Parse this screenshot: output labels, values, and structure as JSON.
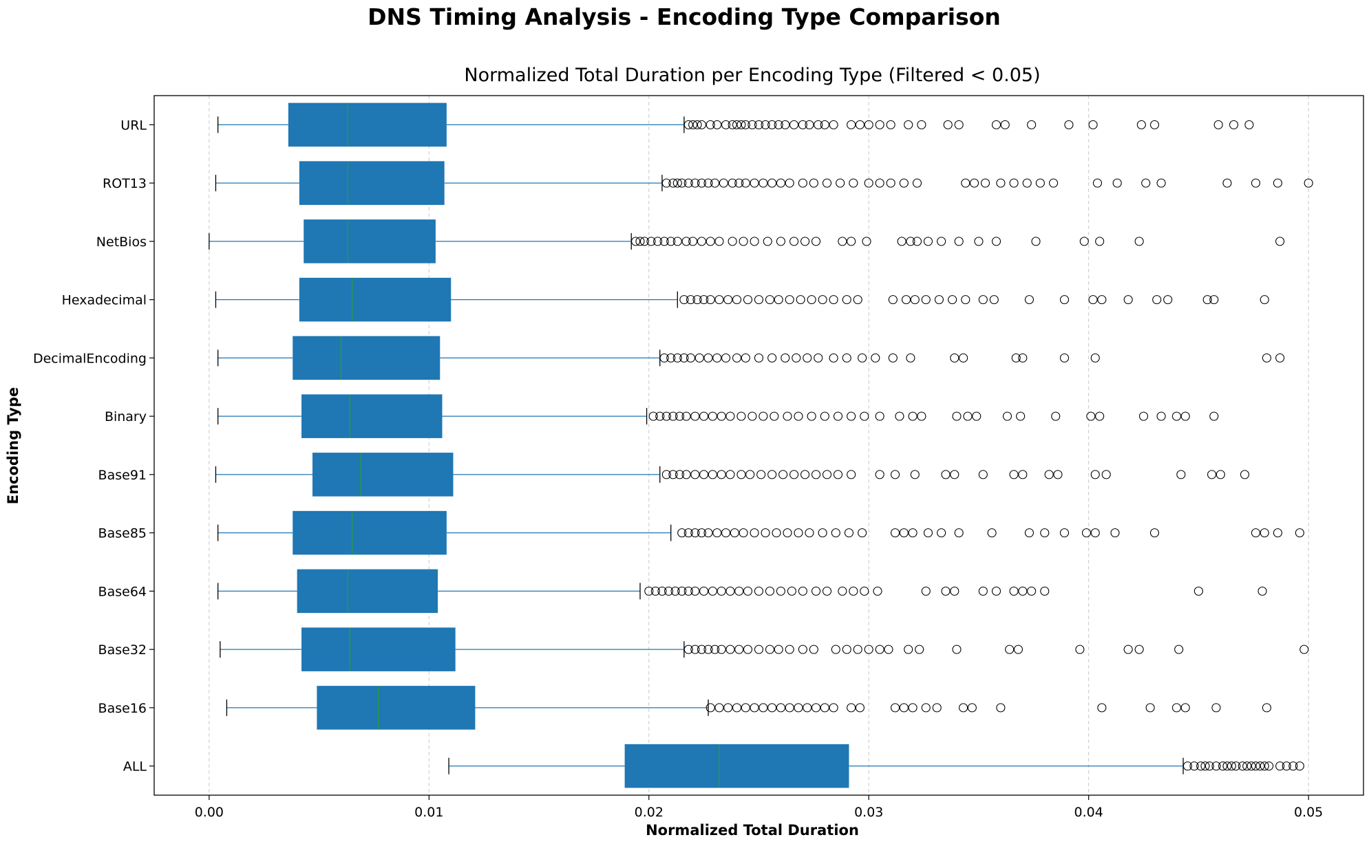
{
  "suptitle": "DNS Timing Analysis - Encoding Type Comparison",
  "chart_data": {
    "type": "boxplot",
    "orientation": "horizontal",
    "title": "Normalized Total Duration per Encoding Type (Filtered < 0.05)",
    "xlabel": "Normalized Total Duration",
    "ylabel": "Encoding Type",
    "xlim": [
      -0.0025,
      0.0525
    ],
    "xticks": [
      0.0,
      0.01,
      0.02,
      0.03,
      0.04,
      0.05
    ],
    "xtick_labels": [
      "0.00",
      "0.01",
      "0.02",
      "0.03",
      "0.04",
      "0.05"
    ],
    "grid": "x-dashed",
    "colors": {
      "box": "#1f77b4",
      "median": "#2ca02c",
      "whisker": "#1f77b4",
      "cap": "#000000",
      "flier": "#000000",
      "grid": "#c8c8c8"
    },
    "categories": [
      "URL",
      "ROT13",
      "NetBios",
      "Hexadecimal",
      "DecimalEncoding",
      "Binary",
      "Base91",
      "Base85",
      "Base64",
      "Base32",
      "Base16",
      "ALL"
    ],
    "boxes": [
      {
        "label": "URL",
        "whislo": 0.0004,
        "q1": 0.0036,
        "med": 0.0063,
        "q3": 0.0108,
        "whishi": 0.0216,
        "fliers": [
          0.0218,
          0.022,
          0.0222,
          0.0224,
          0.0228,
          0.0231,
          0.0235,
          0.0238,
          0.024,
          0.0242,
          0.0244,
          0.0247,
          0.025,
          0.0253,
          0.0256,
          0.0259,
          0.0262,
          0.0266,
          0.027,
          0.0273,
          0.0277,
          0.028,
          0.0284,
          0.0292,
          0.0296,
          0.03,
          0.0305,
          0.031,
          0.0318,
          0.0324,
          0.0336,
          0.0341,
          0.0358,
          0.0362,
          0.0374,
          0.0391,
          0.0402,
          0.0424,
          0.043,
          0.0459,
          0.0466,
          0.0473
        ]
      },
      {
        "label": "ROT13",
        "whislo": 0.0003,
        "q1": 0.0041,
        "med": 0.0063,
        "q3": 0.0107,
        "whishi": 0.0206,
        "fliers": [
          0.0208,
          0.0211,
          0.0213,
          0.0215,
          0.0218,
          0.0221,
          0.0224,
          0.0227,
          0.023,
          0.0234,
          0.0238,
          0.0241,
          0.0244,
          0.0248,
          0.0252,
          0.0256,
          0.026,
          0.0264,
          0.027,
          0.0275,
          0.0281,
          0.0287,
          0.0293,
          0.03,
          0.0305,
          0.031,
          0.0316,
          0.0322,
          0.0344,
          0.0348,
          0.0353,
          0.036,
          0.0366,
          0.0372,
          0.0378,
          0.0384,
          0.0404,
          0.0413,
          0.0426,
          0.0433,
          0.0463,
          0.0476,
          0.0486,
          0.05
        ]
      },
      {
        "label": "NetBios",
        "whislo": 0.0,
        "q1": 0.0043,
        "med": 0.0063,
        "q3": 0.0103,
        "whishi": 0.0192,
        "fliers": [
          0.0194,
          0.0196,
          0.0198,
          0.0201,
          0.0204,
          0.0207,
          0.021,
          0.0213,
          0.0217,
          0.022,
          0.0224,
          0.0228,
          0.0232,
          0.0238,
          0.0243,
          0.0248,
          0.0254,
          0.026,
          0.0266,
          0.0271,
          0.0276,
          0.0288,
          0.0292,
          0.0299,
          0.0315,
          0.0319,
          0.0322,
          0.0327,
          0.0333,
          0.0341,
          0.035,
          0.0358,
          0.0376,
          0.0398,
          0.0405,
          0.0423,
          0.0487
        ]
      },
      {
        "label": "Hexadecimal",
        "whislo": 0.0003,
        "q1": 0.0041,
        "med": 0.0065,
        "q3": 0.011,
        "whishi": 0.0213,
        "fliers": [
          0.0216,
          0.0219,
          0.0222,
          0.0225,
          0.0228,
          0.0232,
          0.0236,
          0.024,
          0.0245,
          0.025,
          0.0255,
          0.0259,
          0.0264,
          0.0269,
          0.0274,
          0.0279,
          0.0284,
          0.029,
          0.0295,
          0.0311,
          0.0317,
          0.0321,
          0.0326,
          0.0332,
          0.0338,
          0.0344,
          0.0352,
          0.0357,
          0.0373,
          0.0389,
          0.0402,
          0.0406,
          0.0418,
          0.0431,
          0.0436,
          0.0454,
          0.0457,
          0.048
        ]
      },
      {
        "label": "DecimalEncoding",
        "whislo": 0.0004,
        "q1": 0.0038,
        "med": 0.006,
        "q3": 0.0105,
        "whishi": 0.0205,
        "fliers": [
          0.0207,
          0.021,
          0.0213,
          0.0216,
          0.0219,
          0.0223,
          0.0227,
          0.0231,
          0.0235,
          0.024,
          0.0244,
          0.025,
          0.0256,
          0.0262,
          0.0267,
          0.0272,
          0.0277,
          0.0284,
          0.029,
          0.0297,
          0.0303,
          0.0311,
          0.0319,
          0.0339,
          0.0343,
          0.0367,
          0.037,
          0.0389,
          0.0403,
          0.0481,
          0.0487
        ]
      },
      {
        "label": "Binary",
        "whislo": 0.0004,
        "q1": 0.0042,
        "med": 0.0064,
        "q3": 0.0106,
        "whishi": 0.0199,
        "fliers": [
          0.0202,
          0.0205,
          0.0208,
          0.0211,
          0.0214,
          0.0217,
          0.0221,
          0.0225,
          0.0229,
          0.0233,
          0.0237,
          0.0242,
          0.0247,
          0.0252,
          0.0257,
          0.0263,
          0.0268,
          0.0274,
          0.028,
          0.0286,
          0.0292,
          0.0298,
          0.0305,
          0.0314,
          0.032,
          0.0324,
          0.034,
          0.0345,
          0.0349,
          0.0363,
          0.0369,
          0.0385,
          0.0401,
          0.0405,
          0.0425,
          0.0433,
          0.044,
          0.0444,
          0.0457
        ]
      },
      {
        "label": "Base91",
        "whislo": 0.0003,
        "q1": 0.0047,
        "med": 0.0069,
        "q3": 0.0111,
        "whishi": 0.0205,
        "fliers": [
          0.0208,
          0.0211,
          0.0214,
          0.0217,
          0.0221,
          0.0225,
          0.0229,
          0.0233,
          0.0237,
          0.0242,
          0.0246,
          0.0251,
          0.0256,
          0.0261,
          0.0266,
          0.0271,
          0.0276,
          0.0281,
          0.0286,
          0.0292,
          0.0305,
          0.0312,
          0.0321,
          0.0335,
          0.0339,
          0.0352,
          0.0366,
          0.037,
          0.0382,
          0.0386,
          0.0403,
          0.0408,
          0.0442,
          0.0456,
          0.046,
          0.0471
        ]
      },
      {
        "label": "Base85",
        "whislo": 0.0004,
        "q1": 0.0038,
        "med": 0.0065,
        "q3": 0.0108,
        "whishi": 0.021,
        "fliers": [
          0.0215,
          0.0218,
          0.0221,
          0.0224,
          0.0227,
          0.0231,
          0.0235,
          0.0239,
          0.0243,
          0.0248,
          0.0253,
          0.0258,
          0.0263,
          0.0268,
          0.0273,
          0.0279,
          0.0285,
          0.0291,
          0.0297,
          0.0312,
          0.0316,
          0.032,
          0.0327,
          0.0333,
          0.0341,
          0.0356,
          0.0373,
          0.038,
          0.0389,
          0.0399,
          0.0403,
          0.0412,
          0.043,
          0.0476,
          0.048,
          0.0486,
          0.0496
        ]
      },
      {
        "label": "Base64",
        "whislo": 0.0004,
        "q1": 0.004,
        "med": 0.0063,
        "q3": 0.0104,
        "whishi": 0.0196,
        "fliers": [
          0.02,
          0.0203,
          0.0206,
          0.0209,
          0.0212,
          0.0215,
          0.0218,
          0.0221,
          0.0225,
          0.0229,
          0.0233,
          0.0237,
          0.0241,
          0.0245,
          0.025,
          0.0255,
          0.026,
          0.0265,
          0.027,
          0.0276,
          0.0281,
          0.0288,
          0.0293,
          0.0298,
          0.0304,
          0.0326,
          0.0335,
          0.0339,
          0.0352,
          0.0358,
          0.0366,
          0.037,
          0.0374,
          0.038,
          0.045,
          0.0479
        ]
      },
      {
        "label": "Base32",
        "whislo": 0.0005,
        "q1": 0.0042,
        "med": 0.0064,
        "q3": 0.0112,
        "whishi": 0.0216,
        "fliers": [
          0.0218,
          0.0221,
          0.0224,
          0.0227,
          0.023,
          0.0233,
          0.0237,
          0.0241,
          0.0245,
          0.025,
          0.0255,
          0.0259,
          0.0264,
          0.027,
          0.0275,
          0.0285,
          0.029,
          0.0295,
          0.03,
          0.0305,
          0.0309,
          0.0318,
          0.0323,
          0.034,
          0.0364,
          0.0368,
          0.0396,
          0.0418,
          0.0423,
          0.0441,
          0.0498
        ]
      },
      {
        "label": "Base16",
        "whislo": 0.0008,
        "q1": 0.0049,
        "med": 0.0077,
        "q3": 0.0121,
        "whishi": 0.0227,
        "fliers": [
          0.0228,
          0.0232,
          0.0236,
          0.024,
          0.0244,
          0.0248,
          0.0252,
          0.0256,
          0.026,
          0.0264,
          0.0268,
          0.0272,
          0.0276,
          0.028,
          0.0284,
          0.0292,
          0.0296,
          0.0312,
          0.0316,
          0.032,
          0.0326,
          0.0331,
          0.0343,
          0.0347,
          0.036,
          0.0406,
          0.0428,
          0.044,
          0.0444,
          0.0458,
          0.0481
        ]
      },
      {
        "label": "ALL",
        "whislo": 0.0109,
        "q1": 0.0189,
        "med": 0.0232,
        "q3": 0.0291,
        "whishi": 0.0443,
        "fliers": [
          0.0445,
          0.0448,
          0.0451,
          0.0453,
          0.0455,
          0.0458,
          0.0461,
          0.0463,
          0.0465,
          0.0467,
          0.047,
          0.0472,
          0.0474,
          0.0476,
          0.0478,
          0.048,
          0.0482,
          0.0487,
          0.049,
          0.0493,
          0.0496
        ]
      }
    ]
  }
}
